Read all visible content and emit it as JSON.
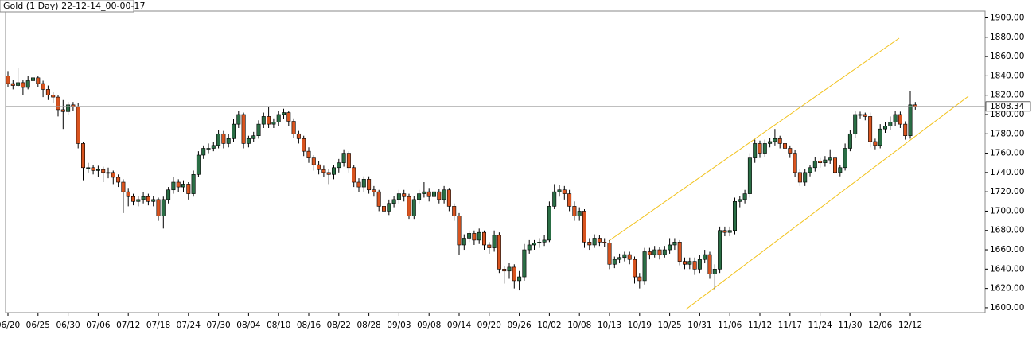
{
  "chart_data": {
    "type": "candlestick",
    "title": "Gold (1 Day) 22-12-14_00-00-17",
    "ylim": [
      1595,
      1907
    ],
    "yticks": [
      {
        "value": 1600,
        "label": "1600.00"
      },
      {
        "value": 1620,
        "label": "1620.00"
      },
      {
        "value": 1640,
        "label": "1640.00"
      },
      {
        "value": 1660,
        "label": "1660.00"
      },
      {
        "value": 1680,
        "label": "1680.00"
      },
      {
        "value": 1700,
        "label": "1700.00"
      },
      {
        "value": 1720,
        "label": "1720.00"
      },
      {
        "value": 1740,
        "label": "1740.00"
      },
      {
        "value": 1760,
        "label": "1760.00"
      },
      {
        "value": 1780,
        "label": "1780.00"
      },
      {
        "value": 1800,
        "label": "1800.00"
      },
      {
        "value": 1820,
        "label": "1820.00"
      },
      {
        "value": 1840,
        "label": "1840.00"
      },
      {
        "value": 1860,
        "label": "1860.00"
      },
      {
        "value": 1880,
        "label": "1880.00"
      },
      {
        "value": 1900,
        "label": "1900.00"
      }
    ],
    "last_price": 1808.34,
    "up_color": "#2a6e45",
    "down_color": "#d9541f",
    "categories": [
      "06/20",
      null,
      null,
      null,
      null,
      null,
      "06/25",
      null,
      null,
      null,
      null,
      null,
      "06/30",
      null,
      null,
      null,
      null,
      null,
      "07/06",
      null,
      null,
      null,
      null,
      null,
      "07/12",
      null,
      null,
      null,
      null,
      null,
      "07/18",
      null,
      null,
      null,
      null,
      null,
      "07/24",
      null,
      null,
      null,
      null,
      null,
      "07/30",
      null,
      null,
      null,
      null,
      null,
      "08/04",
      null,
      null,
      null,
      null,
      null,
      "08/10",
      null,
      null,
      null,
      null,
      null,
      "08/16",
      null,
      null,
      null,
      null,
      null,
      "08/22",
      null,
      null,
      null,
      null,
      null,
      "08/28",
      null,
      null,
      null,
      null,
      null,
      "09/03",
      null,
      null,
      null,
      null,
      null,
      "09/08",
      null,
      null,
      null,
      null,
      null,
      "09/14",
      null,
      null,
      null,
      null,
      null,
      "09/20",
      null,
      null,
      null,
      null,
      null,
      "09/26",
      null,
      null,
      null,
      null,
      null,
      "10/02",
      null,
      null,
      null,
      null,
      null,
      "10/08",
      null,
      null,
      null,
      null,
      null,
      "10/13",
      null,
      null,
      null,
      null,
      null,
      "10/19",
      null,
      null,
      null,
      null,
      null,
      "10/25",
      null,
      null,
      null,
      null,
      null,
      "10/31",
      null,
      null,
      null,
      null,
      null,
      "11/06",
      null,
      null,
      null,
      null,
      null,
      "11/12",
      null,
      null,
      null,
      null,
      null,
      "11/17",
      null,
      null,
      null,
      null,
      null,
      "11/24",
      null,
      null,
      null,
      null,
      null,
      "11/30",
      null,
      null,
      null,
      null,
      null,
      "12/06",
      null,
      null,
      null,
      null,
      null,
      "12/12",
      null
    ],
    "candles": [
      [
        1840,
        1845,
        1828,
        1832
      ],
      [
        1832,
        1836,
        1826,
        1830
      ],
      [
        1830,
        1848,
        1828,
        1833
      ],
      [
        1833,
        1836,
        1820,
        1828
      ],
      [
        1828,
        1840,
        1826,
        1835
      ],
      [
        1835,
        1841,
        1830,
        1838
      ],
      [
        1838,
        1840,
        1828,
        1832
      ],
      [
        1832,
        1835,
        1818,
        1826
      ],
      [
        1826,
        1830,
        1815,
        1820
      ],
      [
        1820,
        1823,
        1812,
        1818
      ],
      [
        1818,
        1820,
        1798,
        1805
      ],
      [
        1805,
        1815,
        1785,
        1803
      ],
      [
        1803,
        1813,
        1800,
        1810
      ],
      [
        1810,
        1813,
        1804,
        1808
      ],
      [
        1808,
        1812,
        1765,
        1770
      ],
      [
        1770,
        1772,
        1732,
        1745
      ],
      [
        1745,
        1750,
        1740,
        1745
      ],
      [
        1745,
        1748,
        1738,
        1742
      ],
      [
        1742,
        1747,
        1735,
        1743
      ],
      [
        1743,
        1746,
        1730,
        1740
      ],
      [
        1740,
        1745,
        1734,
        1740
      ],
      [
        1740,
        1742,
        1728,
        1735
      ],
      [
        1735,
        1738,
        1725,
        1730
      ],
      [
        1730,
        1733,
        1698,
        1720
      ],
      [
        1720,
        1724,
        1705,
        1715
      ],
      [
        1715,
        1718,
        1706,
        1710
      ],
      [
        1710,
        1716,
        1705,
        1712
      ],
      [
        1712,
        1720,
        1708,
        1715
      ],
      [
        1715,
        1718,
        1706,
        1710
      ],
      [
        1710,
        1716,
        1705,
        1712
      ],
      [
        1712,
        1714,
        1690,
        1695
      ],
      [
        1695,
        1715,
        1682,
        1712
      ],
      [
        1712,
        1725,
        1708,
        1722
      ],
      [
        1722,
        1735,
        1718,
        1730
      ],
      [
        1730,
        1733,
        1720,
        1725
      ],
      [
        1725,
        1732,
        1720,
        1728
      ],
      [
        1728,
        1730,
        1712,
        1718
      ],
      [
        1718,
        1742,
        1715,
        1738
      ],
      [
        1738,
        1762,
        1735,
        1758
      ],
      [
        1758,
        1768,
        1754,
        1765
      ],
      [
        1765,
        1770,
        1760,
        1765
      ],
      [
        1765,
        1772,
        1762,
        1768
      ],
      [
        1768,
        1784,
        1765,
        1780
      ],
      [
        1780,
        1783,
        1765,
        1770
      ],
      [
        1770,
        1780,
        1766,
        1775
      ],
      [
        1775,
        1795,
        1772,
        1790
      ],
      [
        1790,
        1804,
        1786,
        1800
      ],
      [
        1800,
        1802,
        1765,
        1770
      ],
      [
        1770,
        1778,
        1766,
        1775
      ],
      [
        1775,
        1782,
        1772,
        1778
      ],
      [
        1778,
        1794,
        1775,
        1790
      ],
      [
        1790,
        1802,
        1786,
        1798
      ],
      [
        1798,
        1808,
        1786,
        1790
      ],
      [
        1790,
        1796,
        1786,
        1792
      ],
      [
        1792,
        1804,
        1788,
        1800
      ],
      [
        1800,
        1806,
        1795,
        1802
      ],
      [
        1802,
        1804,
        1788,
        1793
      ],
      [
        1793,
        1796,
        1776,
        1780
      ],
      [
        1780,
        1783,
        1770,
        1775
      ],
      [
        1775,
        1778,
        1757,
        1762
      ],
      [
        1762,
        1766,
        1750,
        1755
      ],
      [
        1755,
        1758,
        1742,
        1748
      ],
      [
        1748,
        1752,
        1738,
        1743
      ],
      [
        1743,
        1747,
        1735,
        1740
      ],
      [
        1740,
        1744,
        1728,
        1738
      ],
      [
        1738,
        1748,
        1733,
        1745
      ],
      [
        1745,
        1754,
        1740,
        1750
      ],
      [
        1750,
        1764,
        1746,
        1760
      ],
      [
        1760,
        1762,
        1740,
        1745
      ],
      [
        1745,
        1748,
        1725,
        1730
      ],
      [
        1730,
        1734,
        1720,
        1725
      ],
      [
        1725,
        1736,
        1720,
        1733
      ],
      [
        1733,
        1736,
        1718,
        1722
      ],
      [
        1722,
        1726,
        1715,
        1720
      ],
      [
        1720,
        1722,
        1700,
        1705
      ],
      [
        1705,
        1708,
        1690,
        1700
      ],
      [
        1700,
        1712,
        1696,
        1708
      ],
      [
        1708,
        1716,
        1704,
        1712
      ],
      [
        1712,
        1722,
        1708,
        1718
      ],
      [
        1718,
        1722,
        1710,
        1715
      ],
      [
        1715,
        1718,
        1692,
        1695
      ],
      [
        1695,
        1716,
        1692,
        1712
      ],
      [
        1712,
        1722,
        1708,
        1718
      ],
      [
        1718,
        1730,
        1714,
        1720
      ],
      [
        1720,
        1724,
        1710,
        1715
      ],
      [
        1715,
        1732,
        1712,
        1720
      ],
      [
        1720,
        1723,
        1708,
        1712
      ],
      [
        1712,
        1726,
        1708,
        1722
      ],
      [
        1722,
        1724,
        1700,
        1705
      ],
      [
        1705,
        1708,
        1690,
        1695
      ],
      [
        1695,
        1698,
        1655,
        1665
      ],
      [
        1665,
        1676,
        1660,
        1672
      ],
      [
        1672,
        1680,
        1668,
        1677
      ],
      [
        1677,
        1680,
        1665,
        1670
      ],
      [
        1670,
        1682,
        1666,
        1678
      ],
      [
        1678,
        1680,
        1660,
        1665
      ],
      [
        1665,
        1668,
        1656,
        1662
      ],
      [
        1662,
        1680,
        1658,
        1675
      ],
      [
        1675,
        1678,
        1636,
        1640
      ],
      [
        1640,
        1643,
        1625,
        1638
      ],
      [
        1638,
        1646,
        1630,
        1642
      ],
      [
        1642,
        1645,
        1620,
        1628
      ],
      [
        1628,
        1638,
        1618,
        1632
      ],
      [
        1632,
        1666,
        1628,
        1660
      ],
      [
        1660,
        1670,
        1656,
        1665
      ],
      [
        1665,
        1670,
        1660,
        1667
      ],
      [
        1667,
        1672,
        1662,
        1668
      ],
      [
        1668,
        1675,
        1664,
        1670
      ],
      [
        1670,
        1710,
        1668,
        1705
      ],
      [
        1705,
        1728,
        1702,
        1720
      ],
      [
        1720,
        1727,
        1715,
        1722
      ],
      [
        1722,
        1726,
        1712,
        1718
      ],
      [
        1718,
        1722,
        1700,
        1705
      ],
      [
        1705,
        1710,
        1690,
        1695
      ],
      [
        1695,
        1704,
        1690,
        1700
      ],
      [
        1700,
        1702,
        1662,
        1668
      ],
      [
        1668,
        1672,
        1660,
        1665
      ],
      [
        1665,
        1676,
        1662,
        1672
      ],
      [
        1672,
        1675,
        1664,
        1668
      ],
      [
        1668,
        1672,
        1663,
        1667
      ],
      [
        1667,
        1670,
        1640,
        1645
      ],
      [
        1645,
        1653,
        1641,
        1650
      ],
      [
        1650,
        1656,
        1646,
        1652
      ],
      [
        1652,
        1658,
        1648,
        1655
      ],
      [
        1655,
        1658,
        1645,
        1650
      ],
      [
        1650,
        1653,
        1625,
        1632
      ],
      [
        1632,
        1636,
        1620,
        1628
      ],
      [
        1628,
        1662,
        1624,
        1658
      ],
      [
        1658,
        1662,
        1650,
        1655
      ],
      [
        1655,
        1664,
        1652,
        1660
      ],
      [
        1660,
        1663,
        1650,
        1655
      ],
      [
        1655,
        1664,
        1652,
        1660
      ],
      [
        1660,
        1672,
        1656,
        1665
      ],
      [
        1665,
        1672,
        1660,
        1668
      ],
      [
        1668,
        1670,
        1644,
        1648
      ],
      [
        1648,
        1652,
        1640,
        1645
      ],
      [
        1645,
        1652,
        1640,
        1648
      ],
      [
        1648,
        1652,
        1634,
        1640
      ],
      [
        1640,
        1655,
        1636,
        1650
      ],
      [
        1650,
        1660,
        1646,
        1655
      ],
      [
        1655,
        1658,
        1630,
        1635
      ],
      [
        1635,
        1645,
        1618,
        1640
      ],
      [
        1640,
        1684,
        1636,
        1680
      ],
      [
        1680,
        1684,
        1674,
        1678
      ],
      [
        1678,
        1684,
        1674,
        1680
      ],
      [
        1680,
        1714,
        1676,
        1710
      ],
      [
        1710,
        1716,
        1704,
        1712
      ],
      [
        1712,
        1722,
        1708,
        1718
      ],
      [
        1718,
        1760,
        1714,
        1755
      ],
      [
        1755,
        1774,
        1750,
        1770
      ],
      [
        1770,
        1773,
        1755,
        1760
      ],
      [
        1760,
        1774,
        1756,
        1770
      ],
      [
        1770,
        1776,
        1766,
        1772
      ],
      [
        1772,
        1785,
        1768,
        1775
      ],
      [
        1775,
        1778,
        1765,
        1770
      ],
      [
        1770,
        1773,
        1760,
        1765
      ],
      [
        1765,
        1768,
        1755,
        1760
      ],
      [
        1760,
        1763,
        1735,
        1740
      ],
      [
        1740,
        1744,
        1726,
        1730
      ],
      [
        1730,
        1744,
        1726,
        1740
      ],
      [
        1740,
        1748,
        1736,
        1745
      ],
      [
        1745,
        1756,
        1741,
        1752
      ],
      [
        1752,
        1755,
        1745,
        1750
      ],
      [
        1750,
        1757,
        1746,
        1753
      ],
      [
        1753,
        1764,
        1749,
        1755
      ],
      [
        1755,
        1758,
        1736,
        1740
      ],
      [
        1740,
        1748,
        1736,
        1745
      ],
      [
        1745,
        1770,
        1742,
        1765
      ],
      [
        1765,
        1784,
        1762,
        1780
      ],
      [
        1780,
        1804,
        1776,
        1800
      ],
      [
        1800,
        1803,
        1796,
        1800
      ],
      [
        1800,
        1802,
        1794,
        1798
      ],
      [
        1798,
        1802,
        1766,
        1772
      ],
      [
        1772,
        1775,
        1764,
        1768
      ],
      [
        1768,
        1790,
        1765,
        1785
      ],
      [
        1785,
        1792,
        1781,
        1788
      ],
      [
        1788,
        1798,
        1784,
        1792
      ],
      [
        1792,
        1804,
        1788,
        1800
      ],
      [
        1800,
        1803,
        1786,
        1790
      ],
      [
        1790,
        1793,
        1774,
        1778
      ],
      [
        1778,
        1824,
        1775,
        1810
      ],
      [
        1810,
        1813,
        1805,
        1808
      ]
    ]
  }
}
